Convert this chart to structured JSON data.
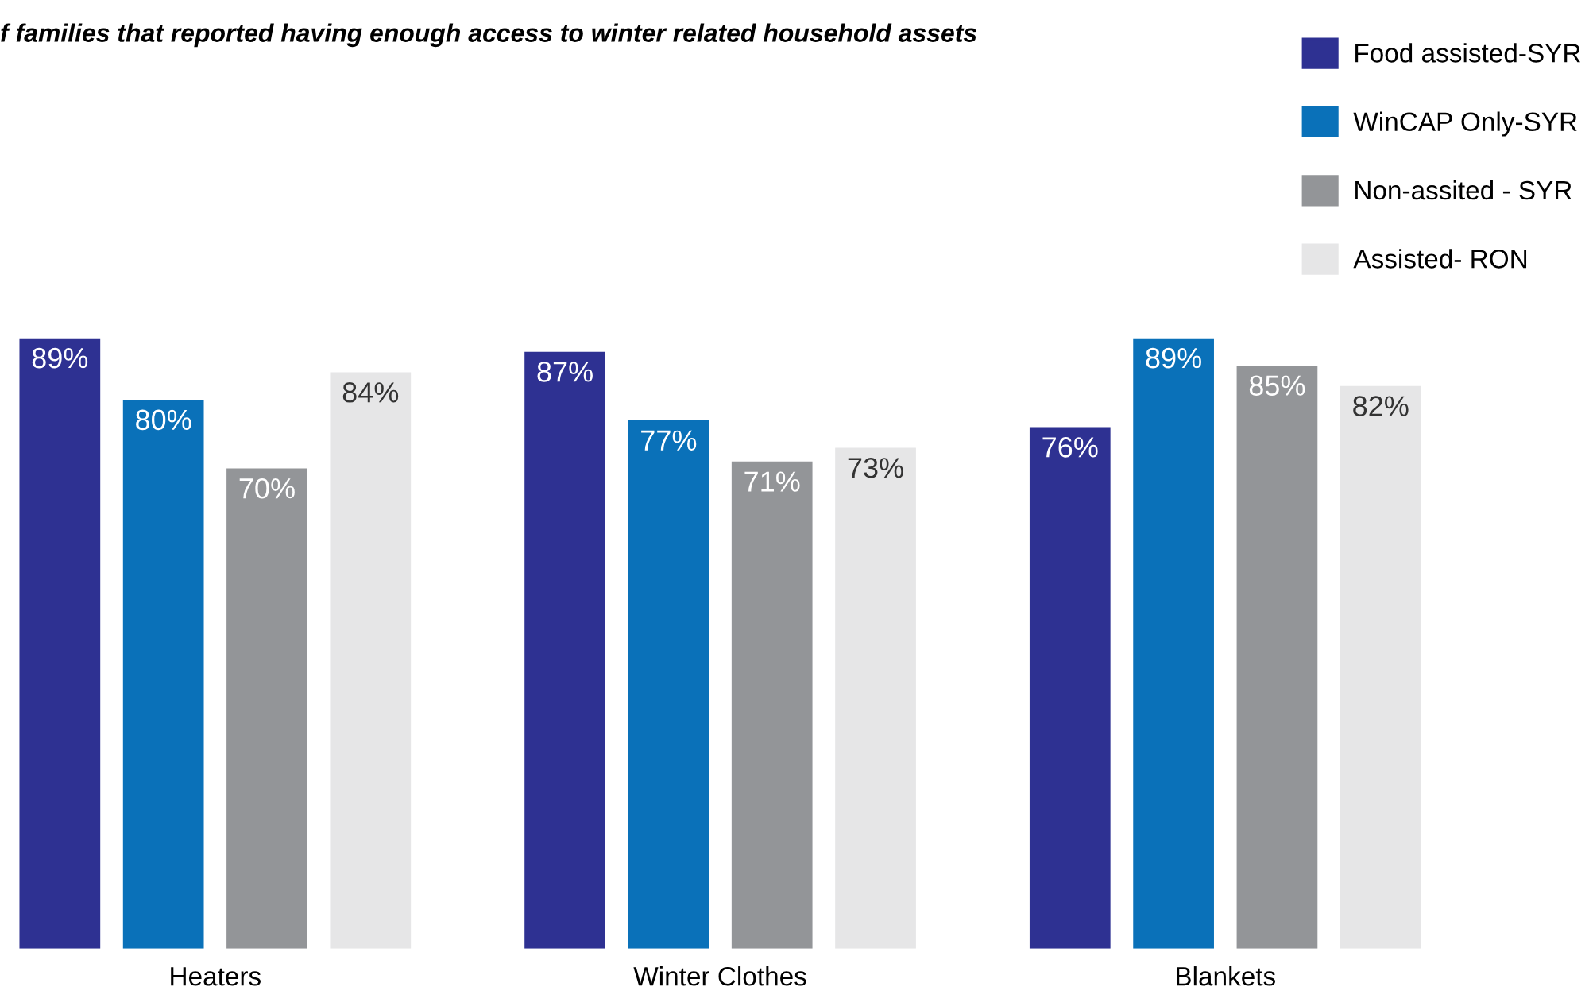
{
  "chart_data": {
    "type": "bar",
    "title": "f families that reported having enough access to winter related household assets",
    "categories": [
      "Heaters",
      "Winter Clothes",
      "Blankets"
    ],
    "series": [
      {
        "name": "Food assisted-SYR",
        "color": "#2e3192",
        "values": [
          89,
          87,
          76
        ],
        "value_labels": [
          "89%",
          "87%",
          "76%"
        ]
      },
      {
        "name": "WinCAP Only-SYR",
        "color": "#0a71b9",
        "values": [
          80,
          77,
          89
        ],
        "value_labels": [
          "80%",
          "77%",
          "89%"
        ]
      },
      {
        "name": "Non-assited - SYR",
        "color": "#939598",
        "values": [
          70,
          71,
          85
        ],
        "value_labels": [
          "70%",
          "71%",
          "85%"
        ]
      },
      {
        "name": "Assisted- RON",
        "color": "#e6e6e7",
        "values": [
          84,
          73,
          82
        ],
        "value_labels": [
          "84%",
          "73%",
          "82%"
        ]
      }
    ],
    "legend": "top right",
    "grid": false
  }
}
